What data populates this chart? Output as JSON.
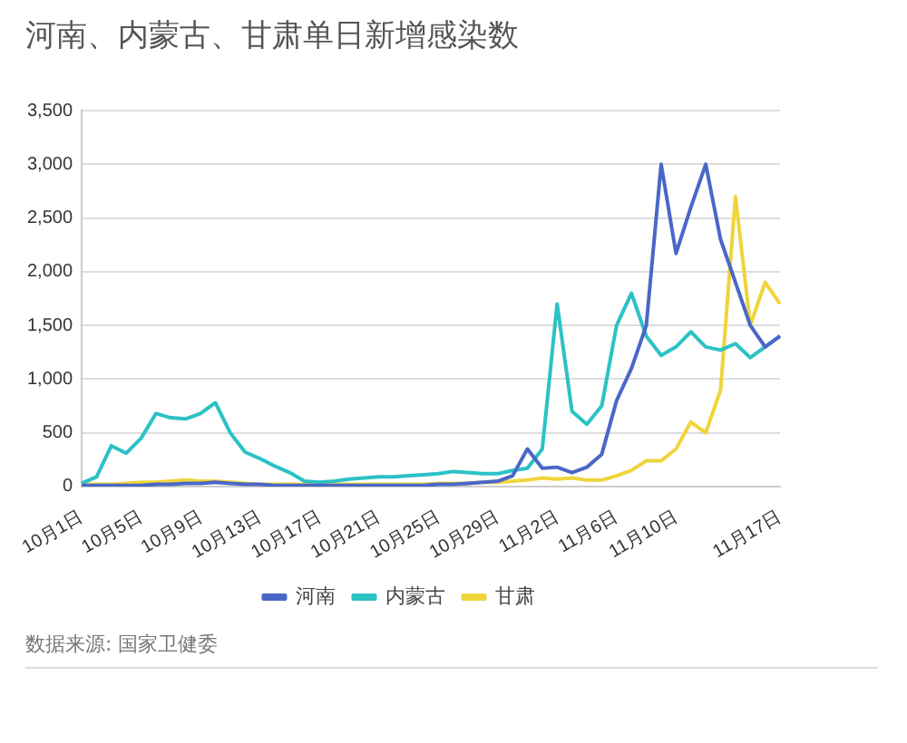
{
  "chart_data": {
    "type": "line",
    "title": "河南、内蒙古、甘肃单日新增感染数",
    "categories": [
      "10月1日",
      null,
      null,
      null,
      "10月5日",
      null,
      null,
      null,
      "10月9日",
      null,
      null,
      null,
      "10月13日",
      null,
      null,
      null,
      "10月17日",
      null,
      null,
      null,
      "10月21日",
      null,
      null,
      null,
      "10月25日",
      null,
      null,
      null,
      "10月29日",
      null,
      null,
      null,
      "11月2日",
      null,
      null,
      null,
      "11月6日",
      null,
      null,
      null,
      "11月10日",
      null,
      null,
      null,
      null,
      null,
      null,
      "11月17日"
    ],
    "series": [
      {
        "name": "河南",
        "color": "#4a67c8",
        "values": [
          10,
          10,
          10,
          10,
          10,
          20,
          20,
          30,
          30,
          40,
          30,
          20,
          20,
          10,
          10,
          10,
          10,
          10,
          10,
          10,
          10,
          10,
          10,
          10,
          20,
          20,
          30,
          40,
          50,
          100,
          350,
          170,
          180,
          130,
          180,
          300,
          800,
          1100,
          1500,
          3000,
          2170,
          2600,
          3000,
          2300,
          1900,
          1500,
          1300,
          1400
        ]
      },
      {
        "name": "内蒙古",
        "color": "#2bc2c5",
        "values": [
          30,
          90,
          380,
          310,
          450,
          680,
          640,
          630,
          680,
          780,
          500,
          320,
          260,
          190,
          130,
          50,
          40,
          50,
          70,
          80,
          90,
          90,
          100,
          110,
          120,
          140,
          130,
          120,
          120,
          150,
          170,
          350,
          1700,
          700,
          580,
          750,
          1500,
          1800,
          1400,
          1220,
          1300,
          1440,
          1300,
          1270,
          1330,
          1200,
          1300,
          1400
        ]
      },
      {
        "name": "甘肃",
        "color": "#f0d43a",
        "values": [
          20,
          20,
          20,
          30,
          40,
          40,
          50,
          60,
          50,
          50,
          40,
          30,
          20,
          20,
          20,
          20,
          20,
          20,
          20,
          20,
          20,
          20,
          20,
          20,
          30,
          30,
          30,
          40,
          40,
          50,
          60,
          80,
          70,
          80,
          60,
          60,
          100,
          150,
          240,
          240,
          350,
          600,
          500,
          900,
          2700,
          1500,
          1900,
          1700
        ]
      }
    ],
    "ylim": [
      0,
      3500
    ],
    "yticks": [
      0,
      500,
      {
        "value": 1000,
        "label": "1,000"
      },
      {
        "value": 1500,
        "label": "1,500"
      },
      {
        "value": 2000,
        "label": "2,000"
      },
      {
        "value": 2500,
        "label": "2,500"
      },
      {
        "value": 3000,
        "label": "3,000"
      },
      {
        "value": 3500,
        "label": "3,500"
      }
    ],
    "grid": "y",
    "legend": "bottom",
    "marker": "none",
    "line_style": "solid",
    "annotations": [
      "数据来源: 国家卫健委"
    ]
  }
}
